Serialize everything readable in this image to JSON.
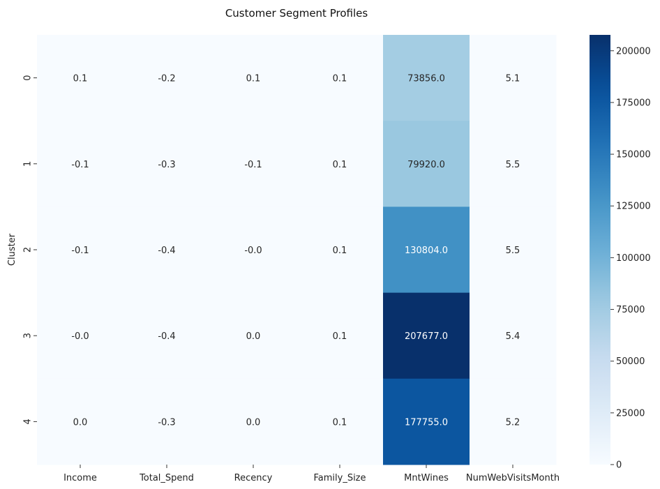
{
  "chart_data": {
    "type": "heatmap",
    "title": "Customer Segment Profiles",
    "ylabel": "Cluster",
    "xlabel": "",
    "columns": [
      "Income",
      "Total_Spend",
      "Recency",
      "Family_Size",
      "MntWines",
      "NumWebVisitsMonth"
    ],
    "rows": [
      "0",
      "1",
      "2",
      "3",
      "4"
    ],
    "values": [
      [
        0.1,
        -0.2,
        0.1,
        0.1,
        73856.0,
        5.1
      ],
      [
        -0.1,
        -0.3,
        -0.1,
        0.1,
        79920.0,
        5.5
      ],
      [
        -0.1,
        -0.4,
        -0.0,
        0.1,
        130804.0,
        5.5
      ],
      [
        -0.0,
        -0.4,
        0.0,
        0.1,
        207677.0,
        5.4
      ],
      [
        0.0,
        -0.3,
        0.0,
        0.1,
        177755.0,
        5.2
      ]
    ],
    "annotations": [
      [
        "0.1",
        "-0.2",
        "0.1",
        "0.1",
        "73856.0",
        "5.1"
      ],
      [
        "-0.1",
        "-0.3",
        "-0.1",
        "0.1",
        "79920.0",
        "5.5"
      ],
      [
        "-0.1",
        "-0.4",
        "-0.0",
        "0.1",
        "130804.0",
        "5.5"
      ],
      [
        "-0.0",
        "-0.4",
        "0.0",
        "0.1",
        "207677.0",
        "5.4"
      ],
      [
        "0.0",
        "-0.3",
        "0.0",
        "0.1",
        "177755.0",
        "5.2"
      ]
    ],
    "colormap": "Blues",
    "vmin": -0.4,
    "vmax": 207677.0,
    "colorbar_ticks": [
      0,
      25000,
      50000,
      75000,
      100000,
      125000,
      150000,
      175000,
      200000
    ]
  }
}
